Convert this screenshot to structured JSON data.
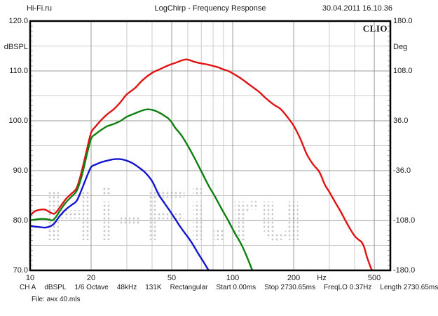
{
  "header": {
    "left": "Hi-Fi.ru",
    "title": "LogChirp - Frequency Response",
    "datetime": "30.04.2011 16.10.36"
  },
  "brand": "CLIO",
  "watermark": "Hi-Fi.ru",
  "axes": {
    "y_left": {
      "unit": "dBSPL",
      "tick_labels": [
        "120.0",
        "110.0",
        "100.0",
        "90.0",
        "80.0",
        "70.0"
      ],
      "tick_values": [
        120,
        110,
        100,
        90,
        80,
        70
      ],
      "min": 70,
      "max": 120
    },
    "y_right": {
      "unit": "Deg",
      "tick_labels": [
        "180.0",
        "108.0",
        "36.0",
        "-36.0",
        "-108.0",
        "-180.0"
      ],
      "tick_values": [
        180,
        108,
        36,
        -36,
        -108,
        -180
      ],
      "min": -180,
      "max": 180
    },
    "x": {
      "unit": "Hz",
      "scale": "log",
      "tick_labels": [
        "10",
        "20",
        "50",
        "100",
        "200",
        "500"
      ],
      "tick_values": [
        10,
        20,
        50,
        100,
        200,
        500
      ],
      "min": 10,
      "max": 600
    }
  },
  "grid": {
    "x_major": [
      20,
      50,
      100,
      200,
      500
    ],
    "x_minor": [
      30,
      40,
      60,
      70,
      80,
      90,
      300,
      400
    ],
    "y_major": [
      110,
      100,
      90,
      80
    ],
    "y_minor": [
      115,
      105,
      95,
      85,
      75
    ]
  },
  "chart_data": {
    "type": "line",
    "title": "LogChirp - Frequency Response",
    "xlabel": "Hz",
    "ylabel": "dBSPL",
    "y2label": "Deg",
    "x_range": [
      10,
      600
    ],
    "x_scale": "log",
    "ylim": [
      70,
      120
    ],
    "y2lim": [
      -180,
      180
    ],
    "grid": true,
    "legend": "none",
    "series": [
      {
        "name": "red-curve",
        "color": "#e01212",
        "points": [
          [
            10,
            81
          ],
          [
            10.5,
            81.8
          ],
          [
            11,
            82.1
          ],
          [
            11.8,
            82.2
          ],
          [
            12.6,
            81.6
          ],
          [
            13.2,
            81.4
          ],
          [
            14,
            82.6
          ],
          [
            15,
            84.3
          ],
          [
            16,
            85.4
          ],
          [
            17,
            86.6
          ],
          [
            18,
            90
          ],
          [
            19,
            94
          ],
          [
            20,
            97.6
          ],
          [
            21,
            98.8
          ],
          [
            22.5,
            100.2
          ],
          [
            24,
            101.3
          ],
          [
            26,
            102.4
          ],
          [
            28,
            103.8
          ],
          [
            30,
            105.3
          ],
          [
            33,
            106.6
          ],
          [
            36,
            108.2
          ],
          [
            40,
            109.6
          ],
          [
            44,
            110.4
          ],
          [
            48,
            111.1
          ],
          [
            52,
            111.6
          ],
          [
            56,
            112.1
          ],
          [
            59,
            112.3
          ],
          [
            62,
            112.1
          ],
          [
            65,
            111.8
          ],
          [
            70,
            111.5
          ],
          [
            75,
            111.3
          ],
          [
            80,
            111
          ],
          [
            85,
            110.7
          ],
          [
            90,
            110.3
          ],
          [
            95,
            110
          ],
          [
            100,
            109.5
          ],
          [
            108,
            108.7
          ],
          [
            115,
            107.9
          ],
          [
            125,
            106.8
          ],
          [
            135,
            105.8
          ],
          [
            145,
            104.6
          ],
          [
            160,
            103.2
          ],
          [
            172,
            102.4
          ],
          [
            185,
            100.9
          ],
          [
            200,
            99
          ],
          [
            215,
            96.5
          ],
          [
            232,
            93.3
          ],
          [
            250,
            91.2
          ],
          [
            268,
            89.7
          ],
          [
            285,
            87.2
          ],
          [
            300,
            85.7
          ],
          [
            320,
            83.7
          ],
          [
            340,
            81.9
          ],
          [
            360,
            80
          ],
          [
            380,
            78.3
          ],
          [
            400,
            76.9
          ],
          [
            420,
            76.1
          ],
          [
            432,
            75.7
          ],
          [
            445,
            74.7
          ],
          [
            458,
            72.9
          ],
          [
            470,
            71.6
          ],
          [
            482,
            70.4
          ],
          [
            488,
            70
          ]
        ]
      },
      {
        "name": "green-curve",
        "color": "#0e800e",
        "points": [
          [
            10,
            80
          ],
          [
            11,
            80.3
          ],
          [
            12,
            80.3
          ],
          [
            13,
            80.1
          ],
          [
            14,
            81.9
          ],
          [
            15,
            83.6
          ],
          [
            16,
            84.8
          ],
          [
            17,
            86
          ],
          [
            18,
            89
          ],
          [
            19,
            93
          ],
          [
            20,
            96.4
          ],
          [
            21,
            97.3
          ],
          [
            22.5,
            98.2
          ],
          [
            24,
            98.9
          ],
          [
            26,
            99.4
          ],
          [
            28,
            100
          ],
          [
            30,
            100.8
          ],
          [
            33,
            101.5
          ],
          [
            36,
            102.1
          ],
          [
            38,
            102.3
          ],
          [
            40,
            102.2
          ],
          [
            42,
            101.9
          ],
          [
            44,
            101.5
          ],
          [
            46,
            101
          ],
          [
            48,
            100.5
          ],
          [
            50,
            99.7
          ],
          [
            52,
            98.6
          ],
          [
            56,
            97
          ],
          [
            61,
            94.5
          ],
          [
            66,
            91.9
          ],
          [
            70.5,
            89.6
          ],
          [
            76,
            87
          ],
          [
            82,
            84.7
          ],
          [
            88,
            82.4
          ],
          [
            95,
            80
          ],
          [
            102,
            77.6
          ],
          [
            110,
            75.3
          ],
          [
            117,
            72.9
          ],
          [
            125,
            70
          ]
        ]
      },
      {
        "name": "blue-curve",
        "color": "#1414d2",
        "points": [
          [
            10,
            78.9
          ],
          [
            11,
            78.7
          ],
          [
            12,
            78.6
          ],
          [
            13,
            79.2
          ],
          [
            14,
            80.9
          ],
          [
            15,
            82.2
          ],
          [
            16,
            83.1
          ],
          [
            17,
            84
          ],
          [
            18,
            86.3
          ],
          [
            19,
            88.7
          ],
          [
            20,
            90.7
          ],
          [
            21,
            91.2
          ],
          [
            22.5,
            91.7
          ],
          [
            24,
            92
          ],
          [
            26,
            92.3
          ],
          [
            28,
            92.3
          ],
          [
            30,
            92
          ],
          [
            32,
            91.5
          ],
          [
            34,
            90.8
          ],
          [
            37,
            89.6
          ],
          [
            40,
            87.9
          ],
          [
            43,
            85.3
          ],
          [
            46,
            83.5
          ],
          [
            49,
            81.9
          ],
          [
            52,
            80.3
          ],
          [
            55,
            78.8
          ],
          [
            58,
            77.5
          ],
          [
            61,
            76.3
          ],
          [
            64,
            75
          ],
          [
            68,
            73.2
          ],
          [
            72,
            71.6
          ],
          [
            76,
            70
          ]
        ]
      }
    ]
  },
  "statusbar": {
    "items": [
      "CH A",
      "dBSPL",
      "1/6 Octave",
      "48kHz",
      "131K",
      "Rectangular",
      "Start 0.00ms",
      "Stop 2730.65ms",
      "FreqLO 0.37Hz",
      "Length 2730.65ms"
    ]
  },
  "file_line": "File: ачх 40.mls"
}
